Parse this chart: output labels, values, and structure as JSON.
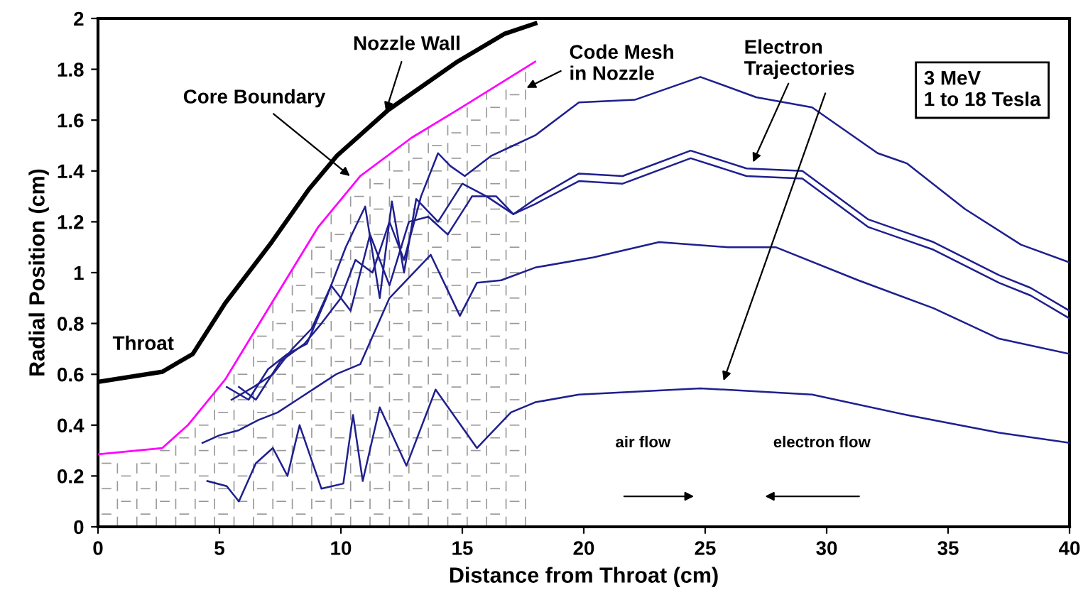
{
  "chart_data": {
    "type": "line",
    "xlabel": "Distance from Throat (cm)",
    "ylabel": "Radial Position (cm)",
    "xlim": [
      0,
      40
    ],
    "ylim": [
      0,
      2
    ],
    "xticks": [
      0,
      5,
      10,
      15,
      20,
      25,
      30,
      35,
      40
    ],
    "yticks": [
      0,
      0.2,
      0.4,
      0.6,
      0.8,
      1,
      1.2,
      1.4,
      1.6,
      1.8,
      2
    ],
    "grid": false,
    "legend": false,
    "marker": "none",
    "line_style": "solid",
    "series": [
      {
        "color": "#000000",
        "x": [
          0,
          2.65,
          3.9,
          5.24,
          7.15,
          8.7,
          9.84,
          11.95,
          14.8,
          16.75,
          18
        ],
        "values": [
          0.57,
          0.61,
          0.68,
          0.88,
          1.12,
          1.33,
          1.46,
          1.64,
          1.83,
          1.94,
          1.98
        ]
      },
      {
        "color": "#ff00ff",
        "x": [
          0,
          2.65,
          3.7,
          5.24,
          7.15,
          9.07,
          10.8,
          12.9,
          14.8,
          18
        ],
        "values": [
          0.285,
          0.31,
          0.4,
          0.58,
          0.88,
          1.18,
          1.38,
          1.53,
          1.64,
          1.83
        ]
      },
      {
        "color": "#1f1f8f",
        "x": [
          5.8,
          6.5,
          7.5,
          8.5,
          9.2,
          10,
          10.6,
          11.3,
          12,
          12.6,
          13.3,
          14,
          14.5,
          15.1,
          16.2,
          17.1,
          18,
          19.8,
          22.1,
          24.8,
          27.1,
          29.4,
          32.1,
          33.3,
          35.7,
          38,
          40
        ],
        "values": [
          0.55,
          0.5,
          0.65,
          0.72,
          0.8,
          0.9,
          1.05,
          1.0,
          1.2,
          1.05,
          1.3,
          1.47,
          1.42,
          1.38,
          1.46,
          1.5,
          1.54,
          1.67,
          1.68,
          1.77,
          1.69,
          1.65,
          1.47,
          1.43,
          1.25,
          1.11,
          1.04
        ]
      },
      {
        "color": "#1f1f8f",
        "x": [
          5.3,
          6.2,
          7,
          7.8,
          8.6,
          9.4,
          10.2,
          11,
          11.6,
          12.1,
          12.6,
          13.1,
          14,
          15,
          16,
          17.1,
          18,
          19.8,
          21.6,
          24.4,
          26.7,
          29,
          31.7,
          34.4,
          37.1,
          38.4,
          40
        ],
        "values": [
          0.55,
          0.5,
          0.62,
          0.68,
          0.72,
          0.9,
          1.1,
          1.26,
          0.9,
          1.28,
          1.0,
          1.29,
          1.2,
          1.35,
          1.3,
          1.23,
          1.29,
          1.39,
          1.38,
          1.48,
          1.41,
          1.4,
          1.21,
          1.12,
          0.99,
          0.94,
          0.85
        ]
      },
      {
        "color": "#1f1f8f",
        "x": [
          5.5,
          6.4,
          7.2,
          8,
          8.8,
          9.6,
          10.4,
          11.2,
          12,
          12.8,
          13.6,
          14.4,
          15.4,
          16.4,
          17.1,
          18,
          19.8,
          21.6,
          24.4,
          26.7,
          29,
          31.7,
          34.4,
          37.1,
          38.4,
          40
        ],
        "values": [
          0.5,
          0.55,
          0.6,
          0.7,
          0.78,
          0.95,
          0.85,
          1.15,
          0.95,
          1.2,
          1.22,
          1.15,
          1.3,
          1.3,
          1.23,
          1.27,
          1.36,
          1.35,
          1.45,
          1.38,
          1.37,
          1.18,
          1.09,
          0.96,
          0.91,
          0.82
        ]
      },
      {
        "color": "#1f1f8f",
        "x": [
          4.3,
          5,
          5.8,
          6.6,
          7.4,
          8.2,
          9,
          9.8,
          10.8,
          12,
          13.7,
          14.9,
          15.6,
          16.6,
          18,
          20.4,
          23.1,
          25.95,
          27.9,
          31.3,
          34.4,
          37.1,
          40
        ],
        "values": [
          0.33,
          0.36,
          0.38,
          0.42,
          0.45,
          0.5,
          0.55,
          0.6,
          0.64,
          0.9,
          1.07,
          0.83,
          0.96,
          0.97,
          1.02,
          1.06,
          1.12,
          1.1,
          1.1,
          0.97,
          0.86,
          0.74,
          0.68
        ]
      },
      {
        "color": "#1f1f8f",
        "x": [
          4.5,
          5.3,
          5.8,
          6.5,
          7.2,
          7.8,
          8.3,
          9.2,
          10.1,
          10.5,
          10.9,
          11.6,
          12.7,
          13.9,
          15.6,
          17,
          18,
          19.8,
          24.8,
          29.4,
          33.3,
          37.1,
          40
        ],
        "values": [
          0.18,
          0.16,
          0.1,
          0.25,
          0.31,
          0.2,
          0.4,
          0.15,
          0.17,
          0.44,
          0.18,
          0.47,
          0.24,
          0.54,
          0.31,
          0.45,
          0.49,
          0.52,
          0.545,
          0.52,
          0.44,
          0.37,
          0.33
        ]
      }
    ],
    "annotations": [
      {
        "text": "Nozzle Wall",
        "x": 11.8,
        "y": 1.62
      },
      {
        "text": "Core Boundary",
        "x": 10.5,
        "y": 1.37
      },
      "Throat",
      "Code Mesh\nin Nozzle",
      {
        "text": "Electron\nTrajectories",
        "x": 26.9,
        "y": 1.42
      },
      "air flow",
      "electron flow",
      "3 MeV\n1 to 18 Tesla"
    ]
  }
}
